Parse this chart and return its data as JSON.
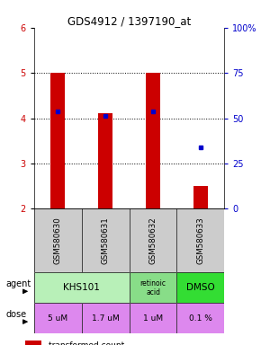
{
  "title": "GDS4912 / 1397190_at",
  "samples": [
    "GSM580630",
    "GSM580631",
    "GSM580632",
    "GSM580633"
  ],
  "bar_values": [
    5.0,
    4.1,
    5.0,
    2.5
  ],
  "bar_bottom": [
    2.0,
    2.0,
    2.0,
    2.0
  ],
  "percentile_values": [
    4.15,
    4.05,
    4.15,
    3.35
  ],
  "ylim": [
    2.0,
    6.0
  ],
  "yticks_left": [
    2,
    3,
    4,
    5,
    6
  ],
  "yticks_right_vals": [
    0,
    25,
    50,
    75,
    100
  ],
  "bar_color": "#cc0000",
  "dot_color": "#0000cc",
  "agent_row_merged": "KHS101",
  "agent_row_col2": "retinoic\nacid",
  "agent_row_col3": "DMSO",
  "agent_color_light": "#b8f0b8",
  "agent_color_mid": "#88dd88",
  "agent_color_bright": "#33dd33",
  "dose_row": [
    "5 uM",
    "1.7 uM",
    "1 uM",
    "0.1 %"
  ],
  "dose_color": "#dd88ee",
  "sample_bg": "#cccccc",
  "left_label_color": "#cc0000",
  "right_label_color": "#0000cc",
  "dose_text_color": "#000000"
}
